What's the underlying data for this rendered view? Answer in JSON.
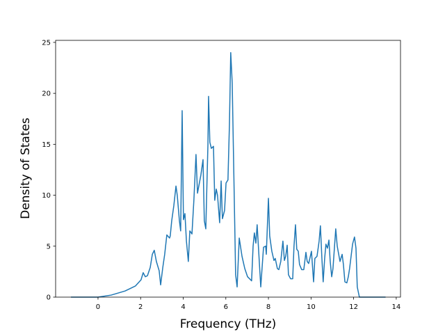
{
  "chart_data": {
    "type": "line",
    "xlabel": "Frequency (THz)",
    "ylabel": "Density of States",
    "xlim": [
      -1.99,
      14.2
    ],
    "ylim": [
      0,
      25.2
    ],
    "xticks": [
      0,
      2,
      4,
      6,
      8,
      10,
      12,
      14
    ],
    "yticks": [
      0,
      5,
      10,
      15,
      20,
      25
    ],
    "series": [
      {
        "color": "#1f77b4",
        "x": [
          -1.27,
          0,
          0.62,
          1.27,
          1.76,
          2.02,
          2.12,
          2.22,
          2.32,
          2.45,
          2.55,
          2.64,
          2.74,
          2.84,
          2.87,
          2.94,
          3.04,
          3.13,
          3.23,
          3.36,
          3.39,
          3.46,
          3.56,
          3.66,
          3.72,
          3.82,
          3.88,
          3.95,
          4.01,
          4.08,
          4.15,
          4.24,
          4.31,
          4.41,
          4.5,
          4.6,
          4.67,
          4.83,
          4.93,
          4.99,
          5.06,
          5.16,
          5.19,
          5.25,
          5.32,
          5.42,
          5.48,
          5.55,
          5.61,
          5.71,
          5.78,
          5.84,
          5.94,
          6.01,
          6.1,
          6.17,
          6.23,
          6.3,
          6.46,
          6.53,
          6.63,
          6.76,
          6.89,
          7.02,
          7.21,
          7.28,
          7.34,
          7.41,
          7.47,
          7.64,
          7.77,
          7.87,
          7.9,
          8.0,
          8.06,
          8.16,
          8.26,
          8.32,
          8.42,
          8.49,
          8.58,
          8.68,
          8.75,
          8.81,
          8.88,
          8.94,
          9.04,
          9.14,
          9.2,
          9.27,
          9.33,
          9.4,
          9.46,
          9.56,
          9.66,
          9.76,
          9.82,
          9.89,
          10.02,
          10.12,
          10.18,
          10.28,
          10.38,
          10.44,
          10.51,
          10.57,
          10.64,
          10.7,
          10.77,
          10.84,
          10.9,
          10.97,
          11.03,
          11.16,
          11.23,
          11.29,
          11.36,
          11.46,
          11.52,
          11.59,
          11.68,
          11.75,
          11.81,
          11.88,
          11.95,
          12.04,
          12.11,
          12.17,
          12.27,
          13.5
        ],
        "values": [
          0,
          0,
          0.2,
          0.6,
          1.1,
          1.7,
          2.4,
          2.0,
          2.1,
          2.9,
          4.2,
          4.6,
          3.5,
          2.8,
          2.6,
          1.2,
          2.9,
          4.2,
          6.1,
          5.8,
          6.0,
          7.5,
          9.0,
          10.9,
          10.0,
          7.5,
          6.5,
          18.3,
          7.6,
          8.2,
          5.5,
          3.5,
          6.5,
          6.2,
          9.5,
          14.0,
          10.2,
          12.0,
          13.5,
          7.5,
          6.7,
          15.0,
          19.7,
          15.2,
          14.6,
          14.8,
          9.5,
          10.6,
          10.0,
          7.3,
          11.4,
          7.7,
          8.5,
          11.2,
          11.5,
          17.0,
          24.0,
          21.0,
          2.2,
          1.0,
          5.8,
          4.0,
          2.8,
          2.0,
          1.6,
          5.0,
          6.3,
          5.3,
          7.1,
          1.0,
          4.9,
          5.0,
          4.2,
          9.7,
          6.0,
          4.5,
          3.6,
          3.8,
          2.8,
          2.7,
          3.5,
          5.5,
          3.6,
          4.0,
          5.1,
          2.2,
          1.8,
          1.8,
          5.0,
          7.1,
          4.7,
          4.5,
          3.2,
          2.7,
          2.7,
          4.4,
          3.5,
          3.3,
          4.5,
          1.5,
          3.8,
          4.0,
          5.5,
          7.0,
          3.8,
          1.5,
          3.8,
          5.2,
          4.8,
          5.6,
          3.5,
          2.0,
          2.8,
          6.7,
          5.0,
          4.3,
          3.5,
          4.2,
          3.2,
          1.5,
          1.4,
          2.0,
          2.8,
          4.0,
          5.2,
          5.9,
          4.8,
          1.0,
          0,
          0
        ]
      }
    ]
  }
}
